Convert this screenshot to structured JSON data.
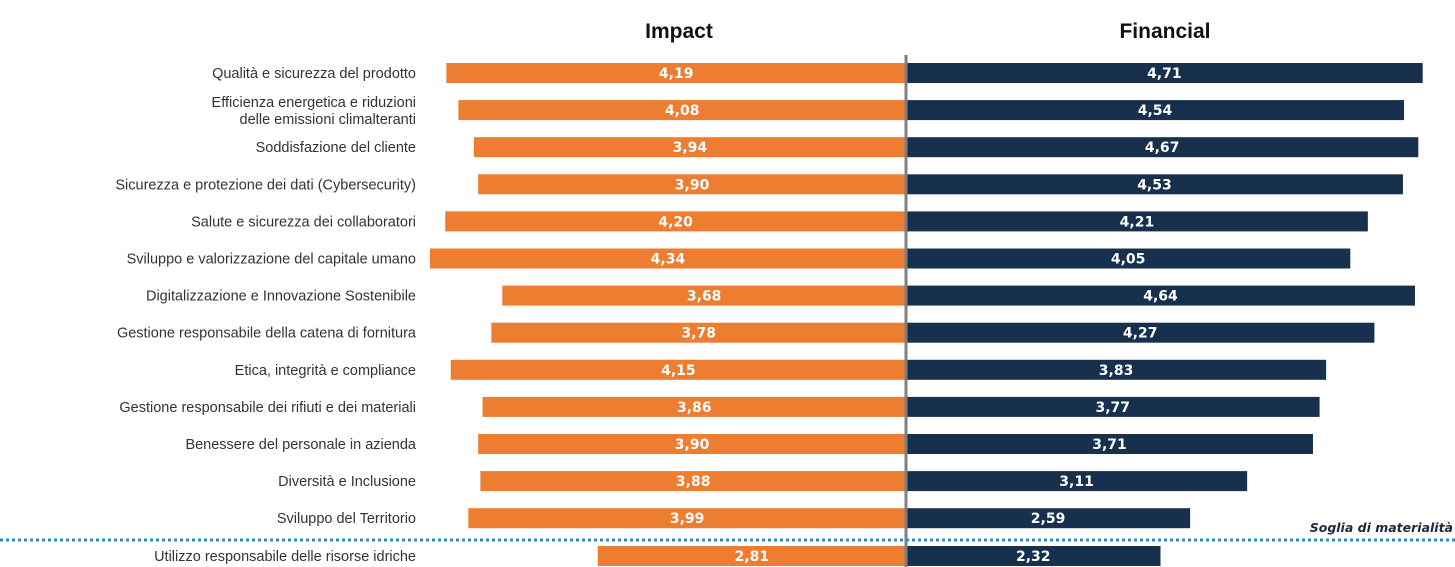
{
  "chart_data": {
    "type": "bar",
    "layout": "butterfly-horizontal",
    "panels": [
      "Impact",
      "Financial"
    ],
    "categories": [
      "Qualità e sicurezza del prodotto",
      "Efficienza energetica e riduzioni|delle emissioni climalteranti",
      "Soddisfazione del cliente",
      "Sicurezza e protezione dei dati (Cybersecurity)",
      "Salute e sicurezza dei collaboratori",
      "Sviluppo e valorizzazione del capitale umano",
      "Digitalizzazione e Innovazione Sostenibile",
      "Gestione responsabile della catena di fornitura",
      "Etica, integrità e compliance",
      "Gestione responsabile dei rifiuti e dei materiali",
      "Benessere del personale in azienda",
      "Diversità e Inclusione",
      "Sviluppo del Territorio",
      "Utilizzo responsabile delle risorse idriche"
    ],
    "series": [
      {
        "name": "Impact",
        "color": "#ed7d31",
        "values": [
          4.19,
          4.08,
          3.94,
          3.9,
          4.2,
          4.34,
          3.68,
          3.78,
          4.15,
          3.86,
          3.9,
          3.88,
          3.99,
          2.81
        ],
        "labels": [
          "4,19",
          "4,08",
          "3,94",
          "3,90",
          "4,20",
          "4,34",
          "3,68",
          "3,78",
          "4,15",
          "3,86",
          "3,90",
          "3,88",
          "3,99",
          "2,81"
        ]
      },
      {
        "name": "Financial",
        "color": "#17304d",
        "values": [
          4.71,
          4.54,
          4.67,
          4.53,
          4.21,
          4.05,
          4.64,
          4.27,
          3.83,
          3.77,
          3.71,
          3.11,
          2.59,
          2.32
        ],
        "labels": [
          "4,71",
          "4,54",
          "4,67",
          "4,53",
          "4,21",
          "4,05",
          "4,64",
          "4,27",
          "3,83",
          "3,77",
          "3,71",
          "3,11",
          "2,59",
          "2,32"
        ]
      }
    ],
    "threshold": {
      "label": "Soglia di materialità",
      "after_index": 12,
      "color": "#2e8bd0"
    },
    "axis_color": "#7f7f7f",
    "grid": false,
    "legend": "none"
  }
}
